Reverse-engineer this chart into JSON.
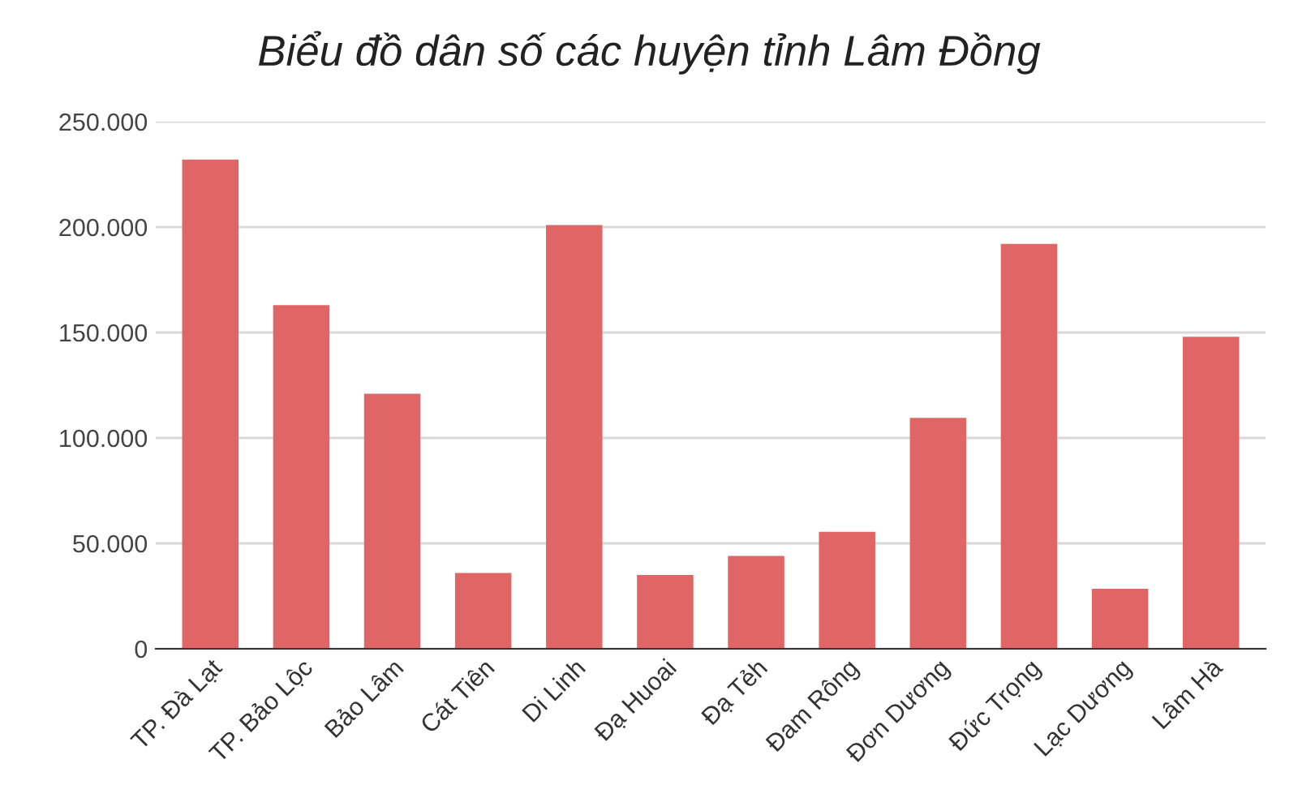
{
  "chart_data": {
    "type": "bar",
    "title": "Biểu đồ dân số các huyện tỉnh Lâm Đồng",
    "categories": [
      "TP. Đà Lạt",
      "TP. Bảo Lộc",
      "Bảo Lâm",
      "Cát Tiên",
      "Di Linh",
      "Đạ Huoai",
      "Đạ Tẻh",
      "Đam Rông",
      "Đơn Dương",
      "Đức Trọng",
      "Lạc Dương",
      "Lâm Hà"
    ],
    "values": [
      232000,
      163000,
      121000,
      36000,
      201000,
      35000,
      44000,
      55500,
      109500,
      192000,
      28500,
      148000
    ],
    "color": "#e06666",
    "ylim": [
      0,
      250000
    ],
    "yticks": [
      0,
      {
        "value": 50000,
        "label": "50.000"
      },
      {
        "value": 100000,
        "label": "100.000"
      },
      {
        "value": 150000,
        "label": "150.000"
      },
      {
        "value": 200000,
        "label": "200.000"
      },
      {
        "value": 250000,
        "label": "250.000"
      }
    ],
    "grid": "y",
    "legend": false
  }
}
